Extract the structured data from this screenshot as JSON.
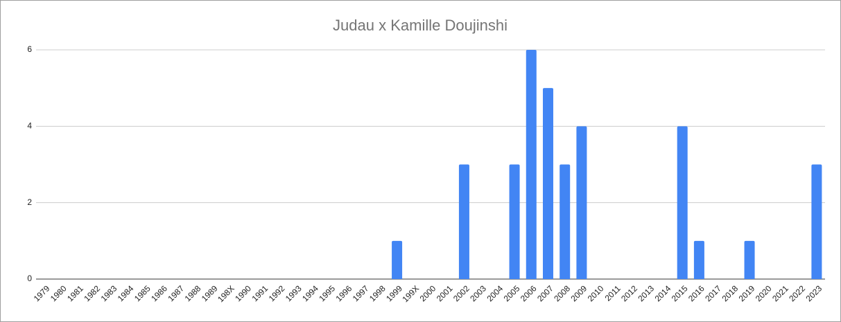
{
  "chart_data": {
    "type": "bar",
    "title": "Judau x Kamille Doujinshi",
    "categories": [
      "1979",
      "1980",
      "1981",
      "1982",
      "1983",
      "1984",
      "1985",
      "1986",
      "1987",
      "1988",
      "1989",
      "198X",
      "1990",
      "1991",
      "1992",
      "1993",
      "1994",
      "1995",
      "1996",
      "1997",
      "1998",
      "1999",
      "199X",
      "2000",
      "2001",
      "2002",
      "2003",
      "2004",
      "2005",
      "2006",
      "2007",
      "2008",
      "2009",
      "2010",
      "2011",
      "2012",
      "2013",
      "2014",
      "2015",
      "2016",
      "2017",
      "2018",
      "2019",
      "2020",
      "2021",
      "2022",
      "2023"
    ],
    "values": [
      0,
      0,
      0,
      0,
      0,
      0,
      0,
      0,
      0,
      0,
      0,
      0,
      0,
      0,
      0,
      0,
      0,
      0,
      0,
      0,
      0,
      1,
      0,
      0,
      0,
      3,
      0,
      0,
      3,
      6,
      5,
      3,
      4,
      0,
      0,
      0,
      0,
      0,
      4,
      1,
      0,
      0,
      1,
      0,
      0,
      0,
      3
    ],
    "color": "#4285f4",
    "ylim": [
      0,
      6
    ],
    "yticks": [
      0,
      2,
      4,
      6
    ],
    "grid": true
  }
}
